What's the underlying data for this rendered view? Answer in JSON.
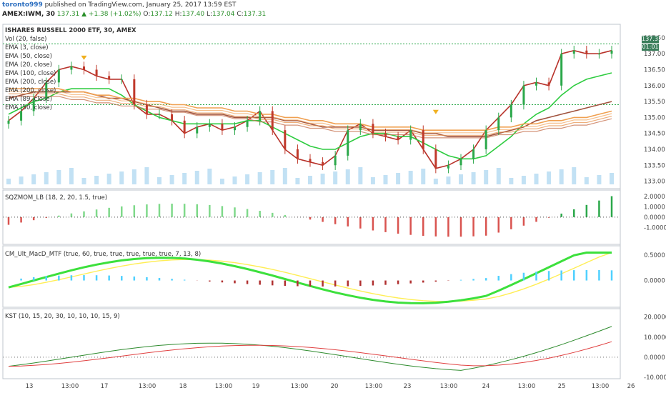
{
  "header": {
    "user": "toronto999",
    "published": "published on TradingView.com, January 25, 2017 13:59 EST",
    "symbol": "AMEX:IWM, 30",
    "change": "137.31 ▲ +1.38 (+1.02%)",
    "ohlc": {
      "o_label": "O:",
      "o": "137.12",
      "h_label": "H:",
      "h": "137.40",
      "l_label": "L:",
      "l": "137.04",
      "c_label": "C:",
      "c": "137.31"
    }
  },
  "main_legend": [
    "ISHARES RUSSELL 2000 ETF, 30, AMEX",
    "Vol (20, false)",
    "EMA (3, close)",
    "EMA (50, close)",
    "EMA (20, close)",
    "EMA (100, close)",
    "EMA (200, close)",
    "EMA (200, close)",
    "EMA (89, close)",
    "EMA (50, close)"
  ],
  "price_badges": {
    "last": "137.31",
    "countdown": "01:01"
  },
  "indicators": {
    "sqz": "SQZMOM_LB (18, 2, 20, 1.5, true)",
    "macd": "CM_Ult_MacD_MTF (true, 60, true, true, true, true, true, 7, 13, 8)",
    "kst": "KST (10, 15, 20, 30, 10, 10, 10, 15, 9)"
  },
  "colors": {
    "up": "#2ba84a",
    "down": "#c0392b",
    "ema_fast": "#b8322a",
    "ema_green": "#2ecc40",
    "ema_orange": "#f0a050",
    "ema_brown": "#a0523d",
    "kst_green": "#2e8b2e",
    "kst_red": "#e04040"
  },
  "chart_data": [
    {
      "type": "line",
      "title": "ISHARES RUSSELL 2000 ETF, 30, AMEX",
      "x_ticks": [
        "13",
        "13:00",
        "17",
        "13:00",
        "18",
        "13:00",
        "19",
        "13:00",
        "20",
        "13:00",
        "23",
        "13:00",
        "24",
        "13:00",
        "25",
        "13:00",
        "26"
      ],
      "ylim": [
        132.9,
        137.7
      ],
      "y_ticks": [
        "137.50",
        "137.00",
        "136.50",
        "136.00",
        "135.50",
        "135.00",
        "134.50",
        "134.00",
        "133.50",
        "133.00"
      ],
      "series": [
        {
          "name": "EMA (3, close)",
          "values": [
            134.9,
            135.2,
            135.6,
            136.1,
            136.5,
            136.6,
            136.5,
            136.3,
            136.2,
            136.2,
            135.4,
            135.1,
            135.1,
            134.9,
            134.5,
            134.7,
            134.8,
            134.6,
            134.7,
            134.9,
            135.2,
            134.6,
            134.0,
            133.7,
            133.6,
            133.5,
            133.8,
            134.6,
            134.8,
            134.5,
            134.4,
            134.3,
            134.6,
            134.0,
            133.4,
            133.5,
            133.7,
            134.0,
            134.6,
            135.0,
            135.4,
            136.0,
            136.1,
            136.0,
            137.0,
            137.1,
            137.0,
            137.0,
            137.1
          ]
        },
        {
          "name": "EMA (20, close)",
          "values": [
            135.1,
            135.3,
            135.5,
            135.6,
            135.8,
            135.9,
            135.9,
            135.9,
            135.9,
            135.7,
            135.4,
            135.2,
            135.0,
            134.9,
            134.8,
            134.8,
            134.8,
            134.8,
            134.8,
            134.9,
            134.9,
            134.7,
            134.5,
            134.3,
            134.1,
            134.0,
            134.0,
            134.2,
            134.4,
            134.5,
            134.5,
            134.4,
            134.4,
            134.2,
            134.0,
            133.8,
            133.7,
            133.7,
            133.8,
            134.1,
            134.4,
            134.8,
            135.1,
            135.3,
            135.7,
            136.0,
            136.2,
            136.3,
            136.4
          ]
        },
        {
          "name": "EMA (50, close)",
          "values": [
            135.6,
            135.7,
            135.8,
            135.8,
            135.8,
            135.8,
            135.8,
            135.7,
            135.6,
            135.6,
            135.5,
            135.4,
            135.3,
            135.2,
            135.2,
            135.1,
            135.1,
            135.1,
            135.0,
            135.0,
            135.0,
            135.0,
            134.9,
            134.9,
            134.8,
            134.7,
            134.7,
            134.7,
            134.7,
            134.6,
            134.6,
            134.6,
            134.6,
            134.5,
            134.5,
            134.4,
            134.4,
            134.4,
            134.4,
            134.5,
            134.6,
            134.7,
            134.9,
            135.0,
            135.1,
            135.2,
            135.3,
            135.4,
            135.5
          ]
        },
        {
          "name": "EMA (200, close)",
          "values": [
            135.9,
            135.9,
            135.9,
            135.9,
            135.9,
            135.8,
            135.8,
            135.7,
            135.7,
            135.6,
            135.6,
            135.5,
            135.5,
            135.4,
            135.4,
            135.3,
            135.3,
            135.3,
            135.2,
            135.2,
            135.1,
            135.1,
            135.0,
            135.0,
            134.9,
            134.9,
            134.8,
            134.8,
            134.8,
            134.7,
            134.7,
            134.7,
            134.7,
            134.6,
            134.6,
            134.6,
            134.6,
            134.6,
            134.6,
            134.7,
            134.7,
            134.8,
            134.8,
            134.9,
            134.9,
            135.0,
            135.0,
            135.1,
            135.2
          ]
        }
      ]
    },
    {
      "type": "bar",
      "title": "SQZMOM_LB (18, 2, 20, 1.5, true)",
      "ylim": [
        -2.5,
        2.2
      ],
      "y_ticks": [
        "2.0000",
        "1.0000",
        "0.0000",
        "-1.0000"
      ]
    },
    {
      "type": "line",
      "title": "CM_Ult_MacD_MTF (true, 60, true, true, true, true, true, 7, 13, 8)",
      "ylim": [
        -0.5,
        0.6
      ],
      "y_ticks": [
        "0.5000",
        "0.0000"
      ]
    },
    {
      "type": "line",
      "title": "KST (10, 15, 20, 30, 10, 10, 10, 15, 9)",
      "ylim": [
        -10,
        22
      ],
      "y_ticks": [
        "20.0000",
        "10.0000",
        "0.0000",
        "-10.0000"
      ]
    }
  ]
}
